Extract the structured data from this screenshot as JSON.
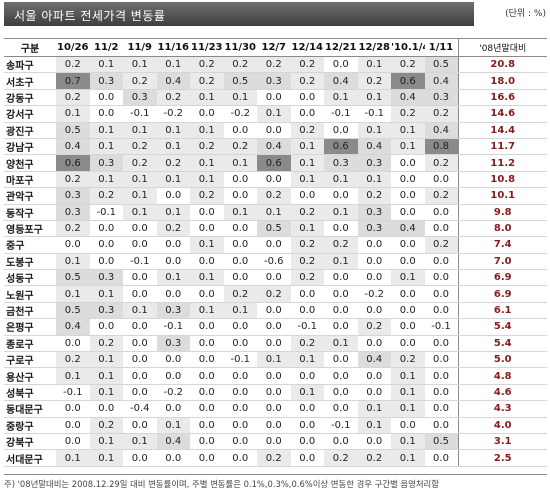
{
  "header": {
    "title": "서울 아파트 전세가격 변동률",
    "unit": "(단위 : %)"
  },
  "footnote": "주) '08년말대비는 2008.12.29일 대비 변동률이며, 주별 변동률은 0.1%,0.3%,0.6%이상 변동한 경우 구간별 음영처리함",
  "chart_data": {
    "type": "table",
    "title": "서울 아파트 전세가격 변동률",
    "unit": "%",
    "columns": [
      "구분",
      "10/26",
      "11/2",
      "11/9",
      "11/16",
      "11/23",
      "11/30",
      "12/7",
      "12/14",
      "12/21",
      "12/28",
      "'10.1/4",
      "1/11",
      "'08년말대비"
    ],
    "weeks": [
      "10/26",
      "11/2",
      "11/9",
      "11/16",
      "11/23",
      "11/30",
      "12/7",
      "12/14",
      "12/21",
      "12/28",
      "'10.1/4",
      "1/11"
    ],
    "cumulative_label": "'08년말대비",
    "shading_thresholds": [
      0.1,
      0.3,
      0.6
    ],
    "rows": [
      {
        "district": "송파구",
        "values": [
          0.2,
          0.1,
          0.1,
          0.1,
          0.2,
          0.2,
          0.2,
          0.2,
          0.0,
          0.1,
          0.2,
          0.5
        ],
        "cumulative": 20.8
      },
      {
        "district": "서초구",
        "values": [
          0.7,
          0.3,
          0.2,
          0.4,
          0.2,
          0.5,
          0.3,
          0.2,
          0.4,
          0.2,
          0.6,
          0.4
        ],
        "cumulative": 18.0
      },
      {
        "district": "강동구",
        "values": [
          0.2,
          0.0,
          0.3,
          0.2,
          0.1,
          0.1,
          0.0,
          0.0,
          0.1,
          0.1,
          0.4,
          0.3
        ],
        "cumulative": 16.6
      },
      {
        "district": "강서구",
        "values": [
          0.1,
          0.0,
          -0.1,
          -0.2,
          0.0,
          -0.2,
          0.1,
          0.0,
          -0.1,
          -0.1,
          0.2,
          0.2
        ],
        "cumulative": 14.6
      },
      {
        "district": "광진구",
        "values": [
          0.5,
          0.1,
          0.1,
          0.1,
          0.1,
          0.0,
          0.0,
          0.2,
          0.0,
          0.1,
          0.1,
          0.4
        ],
        "cumulative": 14.4
      },
      {
        "district": "강남구",
        "values": [
          0.4,
          0.1,
          0.2,
          0.1,
          0.2,
          0.2,
          0.4,
          0.1,
          0.6,
          0.4,
          0.1,
          0.8
        ],
        "cumulative": 11.7
      },
      {
        "district": "양천구",
        "values": [
          0.6,
          0.3,
          0.2,
          0.2,
          0.1,
          0.1,
          0.6,
          0.1,
          0.3,
          0.3,
          0.0,
          0.2
        ],
        "cumulative": 11.2
      },
      {
        "district": "마포구",
        "values": [
          0.2,
          0.1,
          0.1,
          0.1,
          0.1,
          0.0,
          0.0,
          0.1,
          0.1,
          0.1,
          0.0,
          0.0
        ],
        "cumulative": 10.8
      },
      {
        "district": "관악구",
        "values": [
          0.3,
          0.2,
          0.1,
          0.0,
          0.2,
          0.0,
          0.2,
          0.0,
          0.0,
          0.2,
          0.0,
          0.2
        ],
        "cumulative": 10.1
      },
      {
        "district": "동작구",
        "values": [
          0.3,
          -0.1,
          0.1,
          0.1,
          0.0,
          0.1,
          0.1,
          0.2,
          0.1,
          0.3,
          0.0,
          0.0
        ],
        "cumulative": 9.8
      },
      {
        "district": "영등포구",
        "values": [
          0.2,
          0.0,
          0.0,
          0.2,
          0.0,
          0.0,
          0.5,
          0.1,
          0.0,
          0.3,
          0.4,
          0.0
        ],
        "cumulative": 8.0
      },
      {
        "district": "중구",
        "values": [
          0.0,
          0.0,
          0.0,
          0.0,
          0.1,
          0.0,
          0.0,
          0.2,
          0.2,
          0.0,
          0.0,
          0.2
        ],
        "cumulative": 7.4
      },
      {
        "district": "도봉구",
        "values": [
          0.1,
          0.0,
          -0.1,
          0.0,
          0.0,
          0.0,
          -0.6,
          0.2,
          0.1,
          0.0,
          0.0,
          0.0
        ],
        "cumulative": 7.0
      },
      {
        "district": "성동구",
        "values": [
          0.5,
          0.3,
          0.0,
          0.1,
          0.1,
          0.0,
          0.0,
          0.2,
          0.0,
          0.0,
          0.1,
          0.0
        ],
        "cumulative": 6.9
      },
      {
        "district": "노원구",
        "values": [
          0.1,
          0.1,
          0.0,
          0.0,
          0.0,
          0.2,
          0.2,
          0.0,
          0.0,
          -0.2,
          0.0,
          0.0
        ],
        "cumulative": 6.9
      },
      {
        "district": "금천구",
        "values": [
          0.5,
          0.3,
          0.1,
          0.3,
          0.1,
          0.1,
          0.0,
          0.0,
          0.0,
          0.0,
          0.0,
          0.0
        ],
        "cumulative": 6.1
      },
      {
        "district": "은평구",
        "values": [
          0.4,
          0.0,
          0.0,
          -0.1,
          0.0,
          0.0,
          0.0,
          -0.1,
          0.0,
          0.2,
          0.0,
          -0.1
        ],
        "cumulative": 5.4
      },
      {
        "district": "종로구",
        "values": [
          0.0,
          0.2,
          0.0,
          0.3,
          0.0,
          0.0,
          0.0,
          0.2,
          0.1,
          0.0,
          0.0,
          0.0
        ],
        "cumulative": 5.4
      },
      {
        "district": "구로구",
        "values": [
          0.2,
          0.1,
          0.0,
          0.0,
          0.0,
          -0.1,
          0.1,
          0.1,
          0.0,
          0.4,
          0.2,
          0.0
        ],
        "cumulative": 5.0
      },
      {
        "district": "용산구",
        "values": [
          0.1,
          0.1,
          0.0,
          0.0,
          0.0,
          0.0,
          0.0,
          0.0,
          0.0,
          0.0,
          0.1,
          0.0
        ],
        "cumulative": 4.8
      },
      {
        "district": "성북구",
        "values": [
          -0.1,
          0.1,
          0.0,
          -0.2,
          0.0,
          0.0,
          0.0,
          0.1,
          0.0,
          0.0,
          0.1,
          0.0
        ],
        "cumulative": 4.6
      },
      {
        "district": "동대문구",
        "values": [
          0.0,
          0.0,
          -0.4,
          0.0,
          0.0,
          0.0,
          0.0,
          0.0,
          0.0,
          0.1,
          0.1,
          0.0
        ],
        "cumulative": 4.3
      },
      {
        "district": "중랑구",
        "values": [
          0.0,
          0.2,
          0.0,
          0.1,
          0.0,
          0.0,
          0.0,
          0.0,
          -0.1,
          0.1,
          0.0,
          0.0
        ],
        "cumulative": 4.0
      },
      {
        "district": "강북구",
        "values": [
          0.0,
          0.1,
          0.1,
          0.4,
          0.0,
          0.0,
          0.0,
          0.0,
          0.0,
          0.0,
          0.1,
          0.5
        ],
        "cumulative": 3.1
      },
      {
        "district": "서대문구",
        "values": [
          0.1,
          0.1,
          0.0,
          0.0,
          0.0,
          0.0,
          0.2,
          0.0,
          0.2,
          0.2,
          0.1,
          0.0
        ],
        "cumulative": 2.5
      }
    ]
  }
}
